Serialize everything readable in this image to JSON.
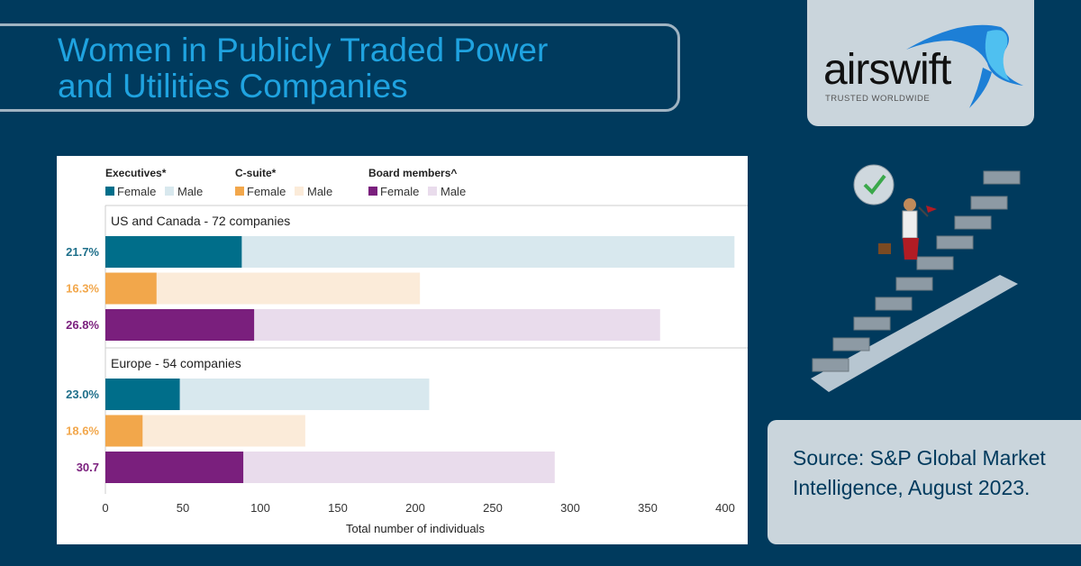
{
  "header": {
    "title_line1": "Women in Publicly Traded Power",
    "title_line2": "and Utilities Companies"
  },
  "logo": {
    "wordmark": "airswift",
    "tagline": "TRUSTED WORLDWIDE"
  },
  "source": {
    "text": "Source: S&P Global Market Intelligence, August 2023."
  },
  "chart_data": {
    "type": "bar",
    "orientation": "horizontal-stacked",
    "xlabel": "Total number of individuals",
    "xlim": [
      0,
      400
    ],
    "xticks": [
      "0",
      "50",
      "100",
      "150",
      "200",
      "250",
      "300",
      "350",
      "400"
    ],
    "legend": [
      {
        "group": "Executives*",
        "items": [
          "Female",
          "Male"
        ],
        "colors": [
          "#006e8a",
          "#d8e8ee"
        ]
      },
      {
        "group": "C-suite*",
        "items": [
          "Female",
          "Male"
        ],
        "colors": [
          "#f2a74b",
          "#fbebd9"
        ]
      },
      {
        "group": "Board members^",
        "items": [
          "Female",
          "Male"
        ],
        "colors": [
          "#7a1f7d",
          "#e9dcec"
        ]
      }
    ],
    "label_colors": [
      "#1e6f8a",
      "#f2a74b",
      "#7a1f7d"
    ],
    "sections": [
      {
        "title": "US and Canada - 72 companies",
        "rows": [
          {
            "category": "Executives",
            "female": 88,
            "male": 318,
            "label": "21.7%"
          },
          {
            "category": "C-suite",
            "female": 33,
            "male": 170,
            "label": "16.3%"
          },
          {
            "category": "Board members",
            "female": 96,
            "male": 262,
            "label": "26.8%"
          }
        ]
      },
      {
        "title": "Europe - 54 companies",
        "rows": [
          {
            "category": "Executives",
            "female": 48,
            "male": 161,
            "label": "23.0%"
          },
          {
            "category": "C-suite",
            "female": 24,
            "male": 105,
            "label": "18.6%"
          },
          {
            "category": "Board members",
            "female": 89,
            "male": 201,
            "label": "30.7"
          }
        ]
      }
    ]
  }
}
